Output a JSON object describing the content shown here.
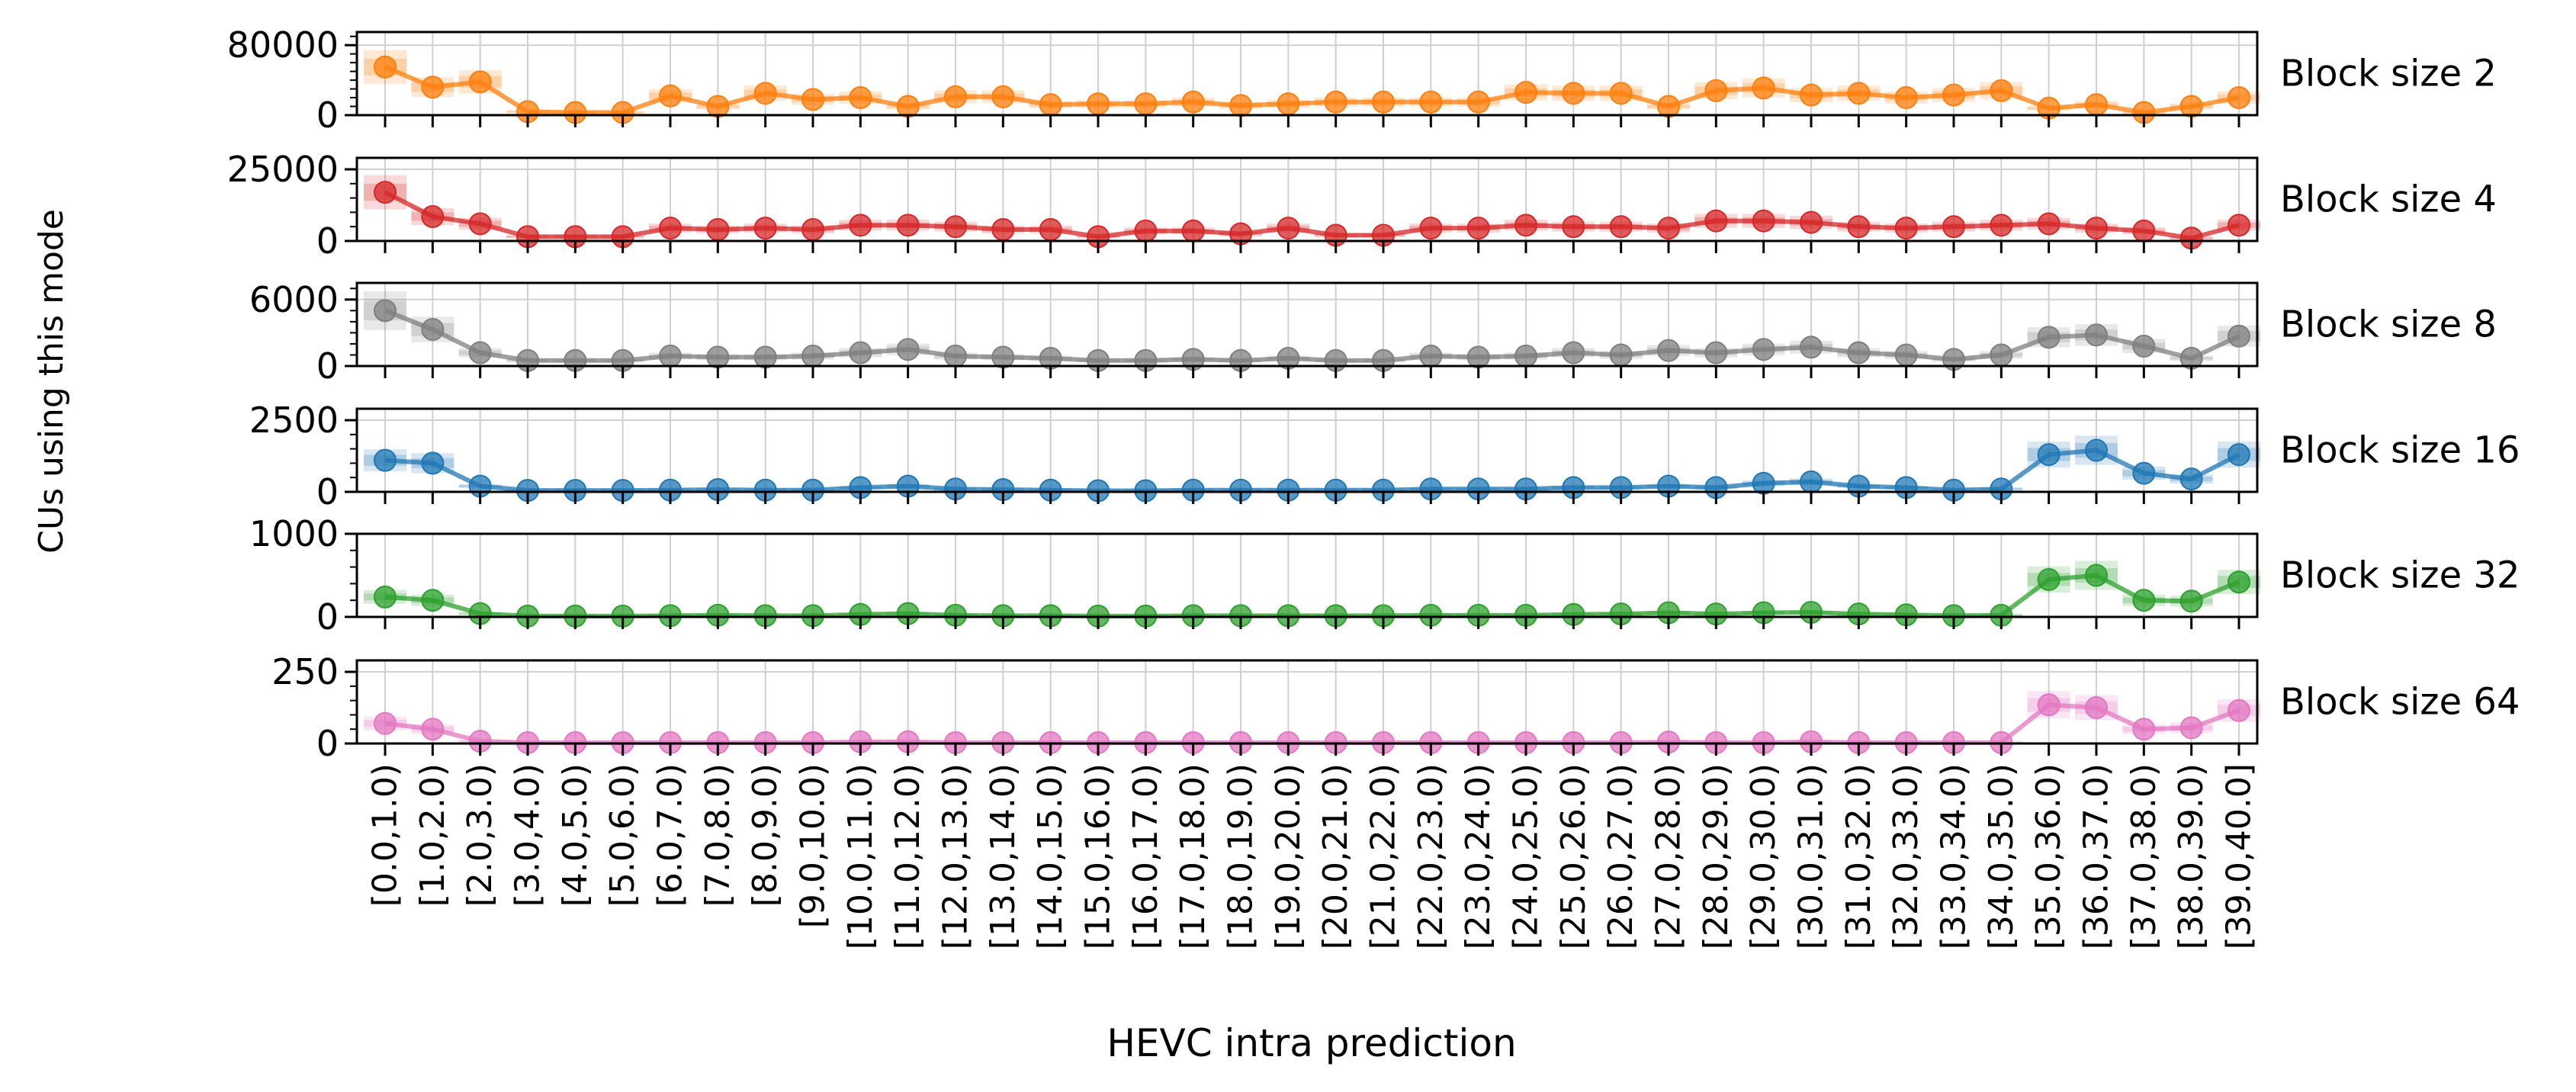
{
  "chart_data": {
    "type": "line",
    "xlabel": "HEVC intra prediction",
    "ylabel": "CUs using this mode",
    "categories": [
      "[0.0,1.0)",
      "[1.0,2.0)",
      "[2.0,3.0)",
      "[3.0,4.0)",
      "[4.0,5.0)",
      "[5.0,6.0)",
      "[6.0,7.0)",
      "[7.0,8.0)",
      "[8.0,9.0)",
      "[9.0,10.0)",
      "[10.0,11.0)",
      "[11.0,12.0)",
      "[12.0,13.0)",
      "[13.0,14.0)",
      "[14.0,15.0)",
      "[15.0,16.0)",
      "[16.0,17.0)",
      "[17.0,18.0)",
      "[18.0,19.0)",
      "[19.0,20.0)",
      "[20.0,21.0)",
      "[21.0,22.0)",
      "[22.0,23.0)",
      "[23.0,24.0)",
      "[24.0,25.0)",
      "[25.0,26.0)",
      "[26.0,27.0)",
      "[27.0,28.0)",
      "[28.0,29.0)",
      "[29.0,30.0)",
      "[30.0,31.0)",
      "[31.0,32.0)",
      "[32.0,33.0)",
      "[33.0,34.0)",
      "[34.0,35.0)",
      "[35.0,36.0)",
      "[36.0,37.0)",
      "[37.0,38.0)",
      "[38.0,39.0)",
      "[39.0,40.0]"
    ],
    "grid": true,
    "panels": [
      {
        "label": "Block size 2",
        "color": "#ff7f0e",
        "ylim": [
          0,
          95000
        ],
        "yticks": [
          0,
          80000
        ],
        "minor_step": 10000,
        "values": [
          55000,
          32000,
          38000,
          4000,
          3000,
          3000,
          22000,
          10000,
          25000,
          18000,
          20000,
          10000,
          21000,
          21000,
          12000,
          13000,
          13000,
          15000,
          11000,
          13000,
          15000,
          15000,
          15000,
          15000,
          26000,
          25000,
          25000,
          10000,
          28000,
          31000,
          23000,
          25000,
          20000,
          23000,
          28000,
          8000,
          12000,
          3000,
          10000,
          20000
        ]
      },
      {
        "label": "Block size 4",
        "color": "#d62728",
        "ylim": [
          0,
          29000
        ],
        "yticks": [
          0,
          25000
        ],
        "minor_step": 5000,
        "values": [
          17000,
          8500,
          6000,
          1500,
          1500,
          1500,
          4500,
          4000,
          4500,
          4000,
          5500,
          5500,
          5000,
          4000,
          4000,
          1500,
          3500,
          3500,
          2500,
          4500,
          2000,
          2000,
          4500,
          4500,
          5500,
          5000,
          5000,
          4500,
          7000,
          7000,
          6500,
          5000,
          4500,
          5000,
          5500,
          6000,
          4500,
          3500,
          1000,
          5500
        ]
      },
      {
        "label": "Block size 8",
        "color": "#7f7f7f",
        "ylim": [
          0,
          7500
        ],
        "yticks": [
          0,
          6000
        ],
        "minor_step": 1000,
        "values": [
          5000,
          3300,
          1200,
          500,
          500,
          500,
          900,
          800,
          800,
          900,
          1200,
          1500,
          900,
          800,
          700,
          500,
          500,
          600,
          500,
          700,
          500,
          500,
          900,
          800,
          900,
          1200,
          1000,
          1400,
          1200,
          1500,
          1700,
          1200,
          1000,
          600,
          1000,
          2600,
          2800,
          1800,
          700,
          2700
        ]
      },
      {
        "label": "Block size 16",
        "color": "#1f77b4",
        "ylim": [
          0,
          2900
        ],
        "yticks": [
          0,
          2500
        ],
        "minor_step": 500,
        "values": [
          1100,
          1000,
          200,
          50,
          50,
          50,
          60,
          80,
          60,
          60,
          150,
          200,
          100,
          80,
          60,
          40,
          40,
          60,
          60,
          60,
          60,
          60,
          100,
          100,
          100,
          150,
          150,
          200,
          150,
          300,
          350,
          200,
          150,
          60,
          100,
          1300,
          1450,
          650,
          450,
          1300
        ]
      },
      {
        "label": "Block size 32",
        "color": "#2ca02c",
        "ylim": [
          0,
          1000
        ],
        "yticks": [
          0,
          1000
        ],
        "minor_step": 200,
        "values": [
          240,
          200,
          40,
          10,
          10,
          10,
          15,
          20,
          15,
          15,
          30,
          40,
          20,
          15,
          15,
          10,
          10,
          15,
          15,
          15,
          15,
          15,
          20,
          20,
          20,
          30,
          35,
          50,
          35,
          50,
          55,
          35,
          25,
          15,
          20,
          450,
          500,
          200,
          190,
          420
        ]
      },
      {
        "label": "Block size 64",
        "color": "#e377c2",
        "ylim": [
          0,
          290
        ],
        "yticks": [
          0,
          250
        ],
        "minor_step": 50,
        "values": [
          70,
          50,
          8,
          3,
          3,
          3,
          3,
          3,
          3,
          3,
          6,
          6,
          3,
          3,
          3,
          3,
          3,
          3,
          3,
          3,
          3,
          3,
          3,
          3,
          3,
          3,
          3,
          5,
          3,
          3,
          6,
          3,
          3,
          3,
          3,
          135,
          125,
          50,
          55,
          115
        ]
      }
    ]
  }
}
